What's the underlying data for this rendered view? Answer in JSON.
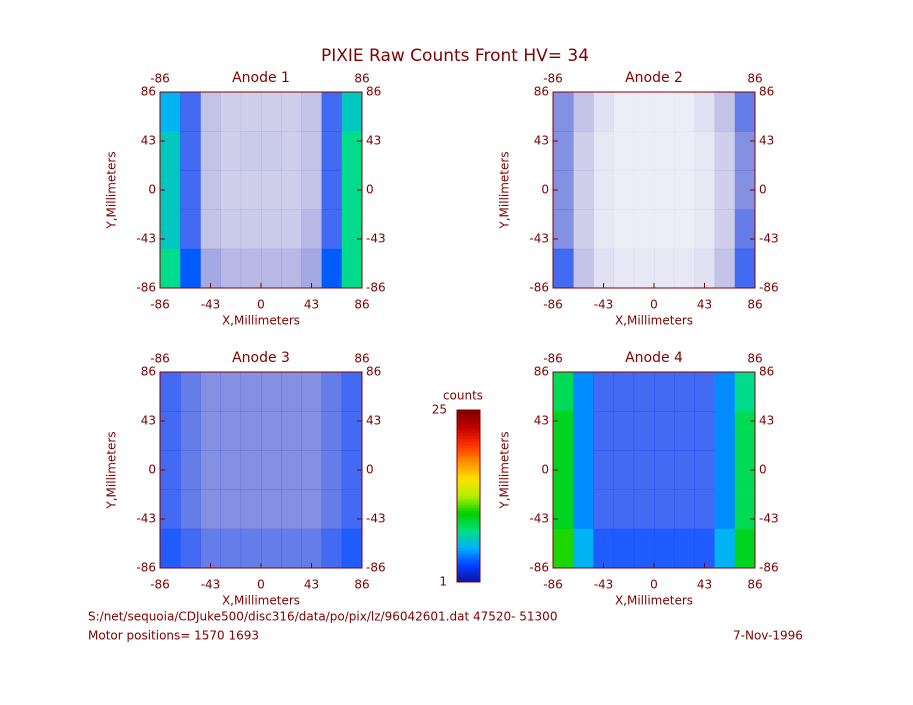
{
  "title": "PIXIE Raw Counts Front HV= 34",
  "colorbar": {
    "label": "counts",
    "lim": [
      1,
      25
    ],
    "ticks": [
      1,
      25
    ],
    "colormap": [
      "#1010a0",
      "#0040ff",
      "#00b0ff",
      "#00e080",
      "#00d000",
      "#b0f000",
      "#ffe000",
      "#ff9000",
      "#ff3000",
      "#c00000",
      "#800000"
    ]
  },
  "footer": {
    "file": "S:/net/sequoia/CDJuke500/disc316/data/po/pix/lz/96042601.dat   47520- 51300",
    "motor": "Motor positions= 1570 1693",
    "date": "7-Nov-1996"
  },
  "chart_data": [
    {
      "type": "heatmap",
      "title": "Anode 1",
      "x_label": "X,Millimeters",
      "y_label": "Y,Millimeters",
      "xlim": [
        -86,
        86
      ],
      "ylim": [
        -86,
        86
      ],
      "xticks": [
        -86,
        -43,
        0,
        43,
        86
      ],
      "yticks": [
        -86,
        -43,
        0,
        43,
        86
      ],
      "x2ticks": [
        -86,
        86
      ],
      "y2ticks": [
        -86,
        -43,
        0,
        43,
        86
      ],
      "z": [
        [
          6,
          3,
          1,
          0.8,
          0.8,
          0.8,
          0.8,
          1,
          3,
          7
        ],
        [
          7,
          3,
          1,
          0.8,
          0.9,
          0.9,
          0.8,
          1,
          3,
          8
        ],
        [
          7,
          3,
          1,
          0.8,
          0.8,
          0.8,
          0.8,
          1,
          3,
          8
        ],
        [
          7,
          3,
          1,
          0.9,
          0.9,
          0.9,
          0.9,
          1.2,
          3,
          8
        ],
        [
          8,
          4,
          1.5,
          1.2,
          1.2,
          1.2,
          1.2,
          1.5,
          4,
          8
        ]
      ]
    },
    {
      "type": "heatmap",
      "title": "Anode 2",
      "x_label": "X,Millimeters",
      "y_label": "Y,Millimeters",
      "xlim": [
        -86,
        86
      ],
      "ylim": [
        -86,
        86
      ],
      "xticks": [
        -86,
        -43,
        0,
        43,
        86
      ],
      "yticks": [
        -86,
        -43,
        0,
        43,
        86
      ],
      "x2ticks": [
        -86,
        86
      ],
      "y2ticks": [
        -86,
        -43,
        0,
        43,
        86
      ],
      "z": [
        [
          2,
          1,
          0.5,
          0.3,
          0.3,
          0.3,
          0.3,
          0.5,
          1,
          2.5
        ],
        [
          2,
          0.8,
          0.4,
          0.3,
          0.3,
          0.3,
          0.3,
          0.4,
          0.8,
          2
        ],
        [
          2,
          0.8,
          0.4,
          0.3,
          0.3,
          0.3,
          0.3,
          0.4,
          0.8,
          2
        ],
        [
          2,
          0.8,
          0.4,
          0.3,
          0.3,
          0.3,
          0.3,
          0.4,
          0.8,
          2.5
        ],
        [
          3,
          1,
          0.5,
          0.4,
          0.4,
          0.4,
          0.4,
          0.5,
          1,
          3
        ]
      ]
    },
    {
      "type": "heatmap",
      "title": "Anode 3",
      "x_label": "X,Millimeters",
      "y_label": "Y,Millimeters",
      "xlim": [
        -86,
        86
      ],
      "ylim": [
        -86,
        86
      ],
      "xticks": [
        -86,
        -43,
        0,
        43,
        86
      ],
      "yticks": [
        -86,
        -43,
        0,
        43,
        86
      ],
      "x2ticks": [
        -86,
        86
      ],
      "y2ticks": [
        -86,
        -43,
        0,
        43,
        86
      ],
      "z": [
        [
          3,
          2.5,
          2,
          2,
          2,
          2,
          2,
          2,
          2.5,
          3
        ],
        [
          3,
          2.5,
          2,
          2,
          2,
          2,
          2,
          2,
          2.5,
          3
        ],
        [
          3,
          2.5,
          2,
          2,
          2,
          2,
          2,
          2,
          2.5,
          3
        ],
        [
          3,
          2.5,
          2,
          2,
          2,
          2,
          2,
          2,
          2.5,
          3
        ],
        [
          3.5,
          3,
          2.5,
          2.5,
          2.5,
          2.5,
          2.5,
          2.5,
          3,
          3.5
        ]
      ]
    },
    {
      "type": "heatmap",
      "title": "Anode 4",
      "x_label": "X,Millimeters",
      "y_label": "Y,Millimeters",
      "xlim": [
        -86,
        86
      ],
      "ylim": [
        -86,
        86
      ],
      "xticks": [
        -86,
        -43,
        0,
        43,
        86
      ],
      "yticks": [
        -86,
        -43,
        0,
        43,
        86
      ],
      "x2ticks": [
        -86,
        86
      ],
      "y2ticks": [
        -86,
        -43,
        0,
        43,
        86
      ],
      "z": [
        [
          9,
          5,
          3,
          3,
          3,
          3,
          3,
          3,
          5,
          8
        ],
        [
          10,
          5,
          3,
          3,
          3,
          3,
          3,
          3,
          5,
          9
        ],
        [
          10,
          5,
          3,
          3,
          3,
          3,
          3,
          3,
          5,
          9
        ],
        [
          10,
          5,
          3,
          3,
          3,
          3,
          3,
          3,
          5,
          9
        ],
        [
          11,
          6,
          3.5,
          3.5,
          3.5,
          3.5,
          3.5,
          3.5,
          6,
          10
        ]
      ]
    }
  ]
}
